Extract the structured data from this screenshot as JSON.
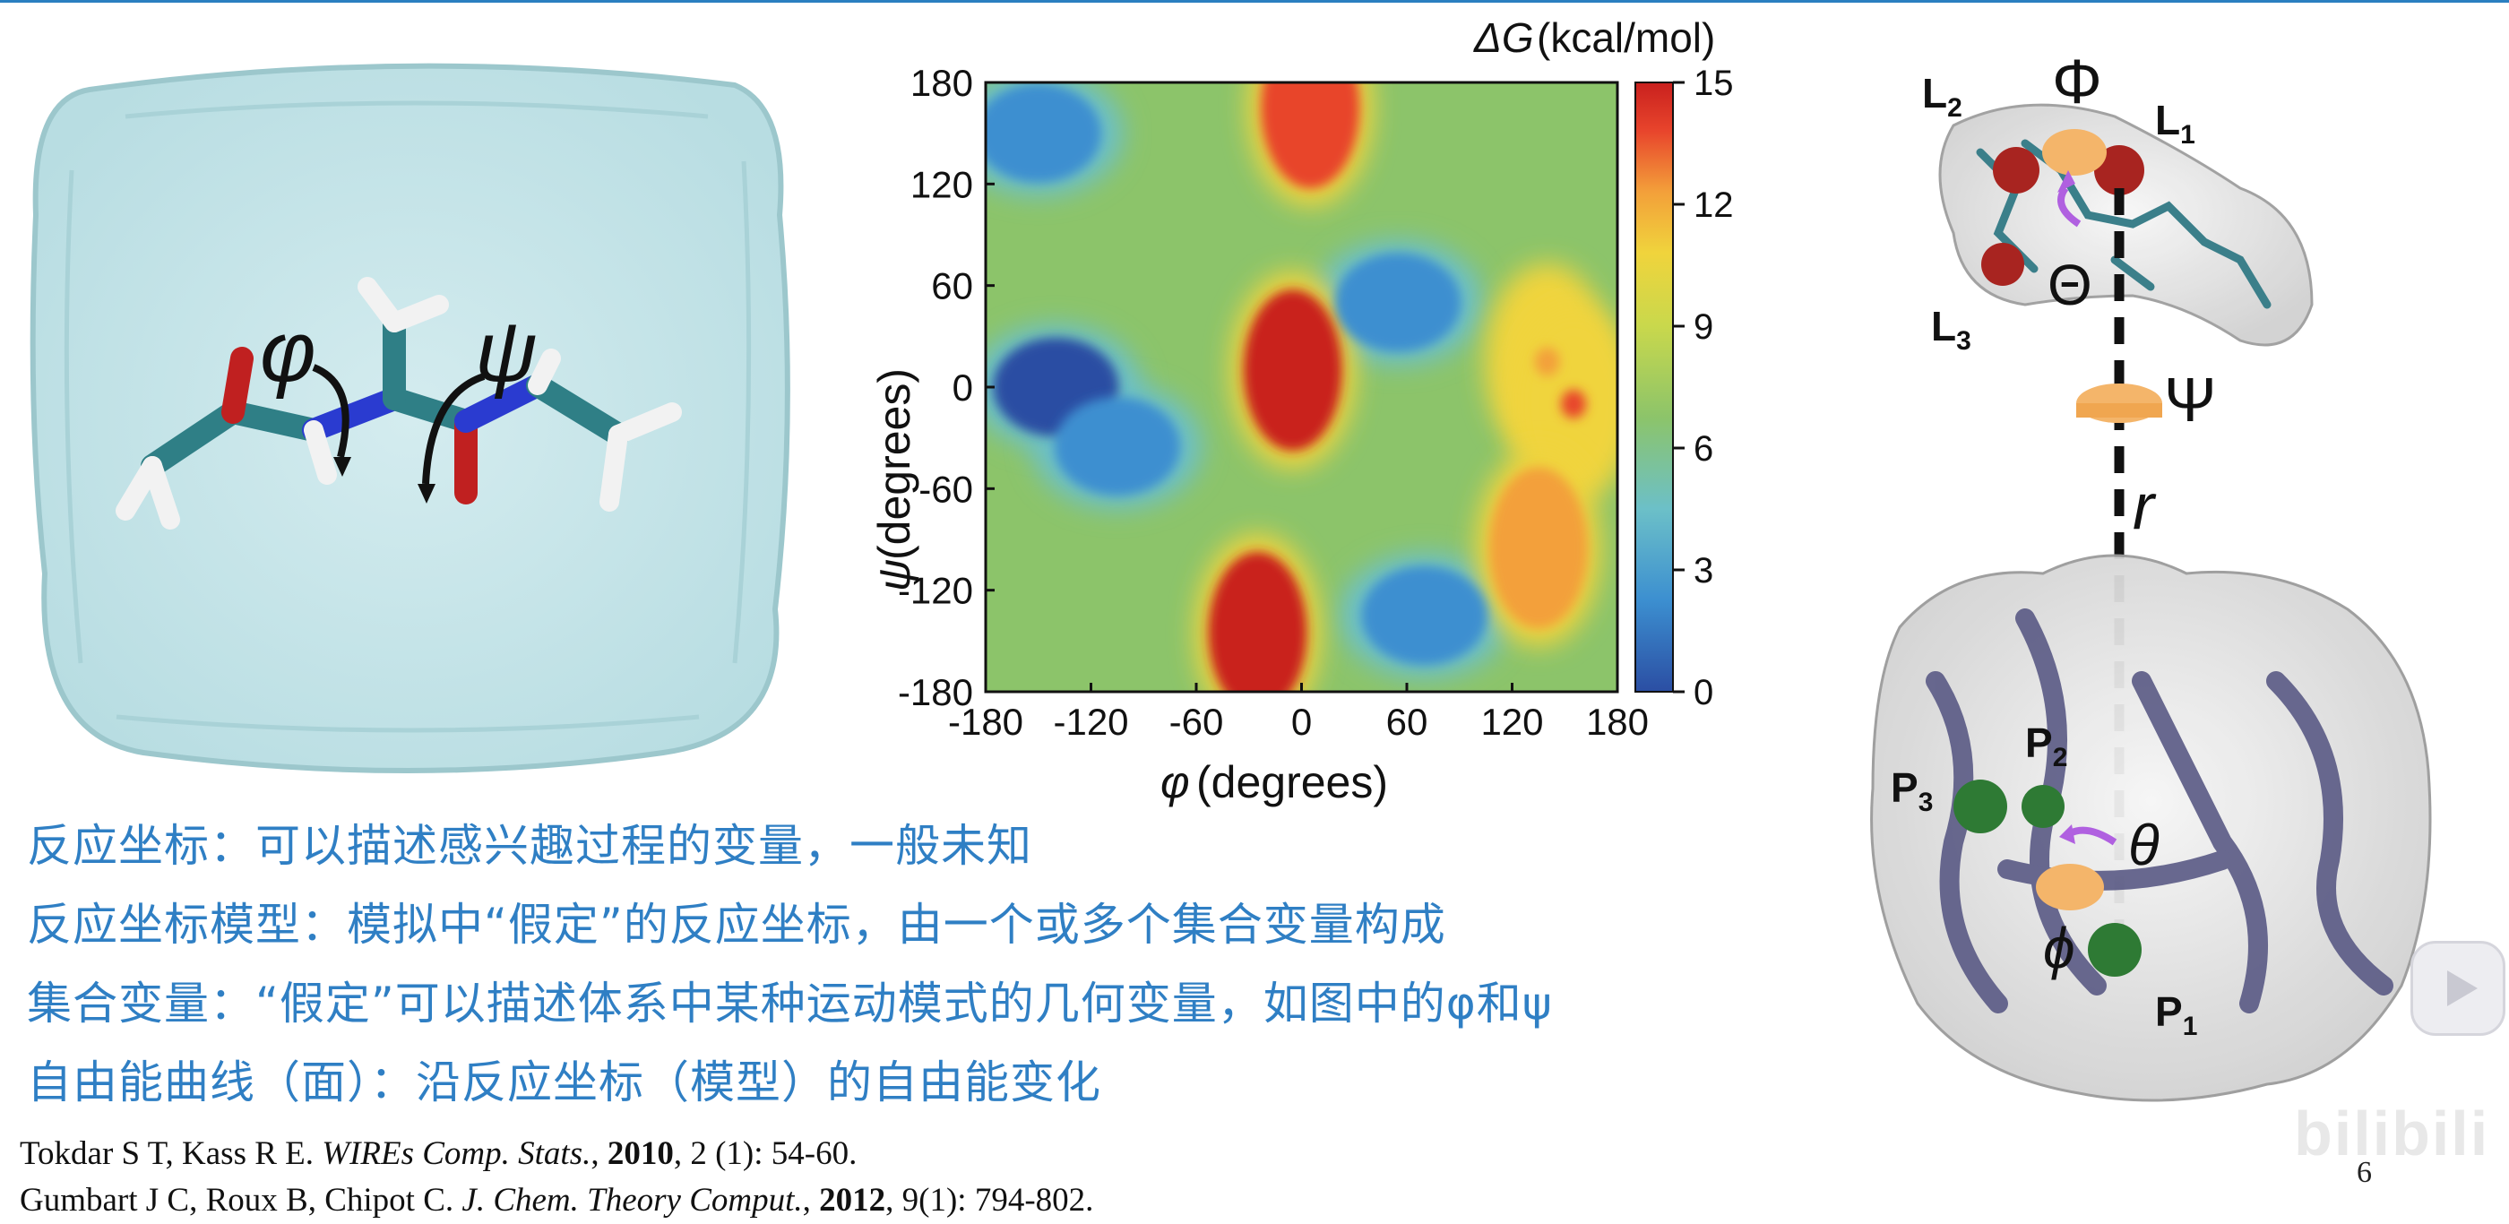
{
  "molecule": {
    "phi_symbol": "φ",
    "psi_symbol": "ψ"
  },
  "chart_data": {
    "type": "heatmap",
    "colorbar_title_symbol": "ΔG",
    "colorbar_title_unit": "(kcal/mol)",
    "xlabel_symbol": "φ",
    "xlabel_unit": "(degrees)",
    "ylabel_symbol": "ψ",
    "ylabel_unit": "(degrees)",
    "xlim": [
      -180,
      180
    ],
    "ylim": [
      -180,
      180
    ],
    "x_ticks": [
      "-180",
      "-120",
      "-60",
      "0",
      "60",
      "120",
      "180"
    ],
    "y_ticks": [
      "180",
      "120",
      "60",
      "0",
      "-60",
      "-120",
      "-180"
    ],
    "colorbar_range": [
      0,
      15
    ],
    "colorbar_ticks": [
      "15",
      "12",
      "9",
      "6",
      "3",
      "0"
    ],
    "colormap": [
      "#2b4ea3",
      "#3c8fd0",
      "#6cc0c8",
      "#8cc46a",
      "#c9d84c",
      "#f0d43c",
      "#f3a03a",
      "#e8452c",
      "#c9201e"
    ],
    "features": [
      {
        "phi": -150,
        "psi": 150,
        "dG": 1.0
      },
      {
        "phi": -140,
        "psi": 0,
        "dG": 0.5
      },
      {
        "phi": -105,
        "psi": -35,
        "dG": 1.0
      },
      {
        "phi": 55,
        "psi": 50,
        "dG": 2.0
      },
      {
        "phi": 70,
        "psi": -135,
        "dG": 2.5
      },
      {
        "phi": -5,
        "psi": 10,
        "dG": 14.5
      },
      {
        "phi": -25,
        "psi": -145,
        "dG": 14.5
      },
      {
        "phi": 5,
        "psi": 165,
        "dG": 14.0
      },
      {
        "phi": 140,
        "psi": 15,
        "dG": 11.0
      },
      {
        "phi": 155,
        "psi": -10,
        "dG": 13.0
      },
      {
        "phi": 135,
        "psi": -95,
        "dG": 10.5
      }
    ]
  },
  "schematic": {
    "ligand_labels": [
      "L",
      "L",
      "L"
    ],
    "ligand_subs": [
      "2",
      "1",
      "3"
    ],
    "protein_labels": [
      "P",
      "P",
      "P"
    ],
    "protein_subs": [
      "2",
      "3",
      "1"
    ],
    "Phi": "Φ",
    "Theta": "Θ",
    "Psi": "Ψ",
    "r": "r",
    "theta": "θ",
    "phi": "ϕ"
  },
  "definitions": [
    "反应坐标：可以描述感兴趣过程的变量，一般未知",
    "反应坐标模型：模拟中“假定”的反应坐标，由一个或多个集合变量构成",
    "集合变量：“假定”可以描述体系中某种运动模式的几何变量，如图中的φ和ψ",
    "自由能曲线（面）：沿反应坐标（模型）的自由能变化"
  ],
  "references": [
    {
      "authors": "Tokdar S T, Kass R E. ",
      "journal": "WIREs Comp. Stats.",
      "sep": ", ",
      "year": "2010",
      "rest": ", 2 (1): 54-60."
    },
    {
      "authors": "Gumbart J C, Roux B, Chipot C. ",
      "journal": "J. Chem. Theory Comput.",
      "sep": ", ",
      "year": "2012",
      "rest": ", 9(1): 794-802."
    }
  ],
  "page_number": "6",
  "watermark": "bilibili"
}
